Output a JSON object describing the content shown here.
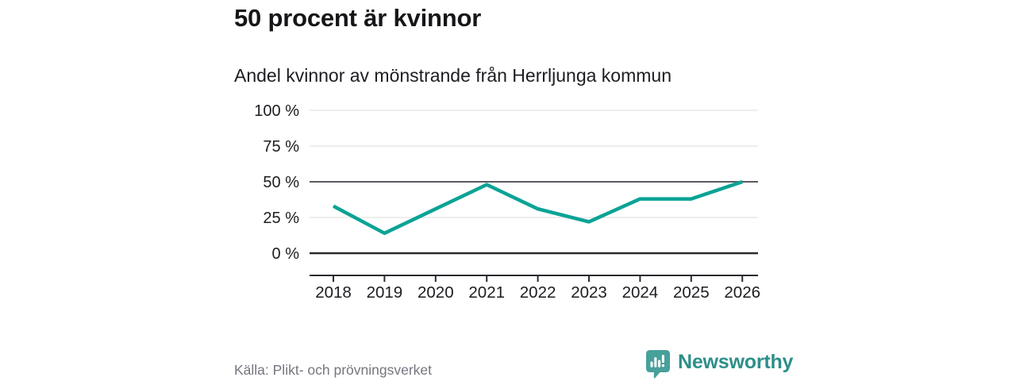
{
  "page": {
    "title": "50 procent är kvinnor",
    "subtitle": "Andel kvinnor av mönstrande från Herrljunga kommun",
    "source": "Källa: Plikt- och prövningsverket"
  },
  "brand": {
    "name": "Newsworthy",
    "icon": "speech-bubble-bar-chart-icon",
    "icon_color": "#47a09b",
    "icon_glyph_color": "#ffffff",
    "text_color": "#2d8f8a"
  },
  "colors": {
    "line": "#0ba396",
    "grid_light": "#e3e3e3",
    "grid_reference": "#5a5a62",
    "axis": "#2a2a30",
    "text": "#1d1d22",
    "muted_text": "#75757f",
    "background": "#ffffff"
  },
  "chart_data": {
    "type": "line",
    "title": "50 procent är kvinnor",
    "subtitle": "Andel kvinnor av mönstrande från Herrljunga kommun",
    "categories": [
      "2018",
      "2019",
      "2020",
      "2021",
      "2022",
      "2023",
      "2024",
      "2025",
      "2026"
    ],
    "series": [
      {
        "name": "Andel kvinnor av mönstrande",
        "values": [
          33,
          14,
          31,
          48,
          31,
          22,
          38,
          38,
          50
        ]
      }
    ],
    "unit": "%",
    "xlabel": "",
    "ylabel": "",
    "ylim": [
      0,
      100
    ],
    "yticks": [
      0,
      25,
      50,
      75,
      100
    ],
    "ytick_suffix": " %",
    "reference_line": 50,
    "grid": true,
    "legend": "none",
    "source": "Källa: Plikt- och prövningsverket"
  }
}
